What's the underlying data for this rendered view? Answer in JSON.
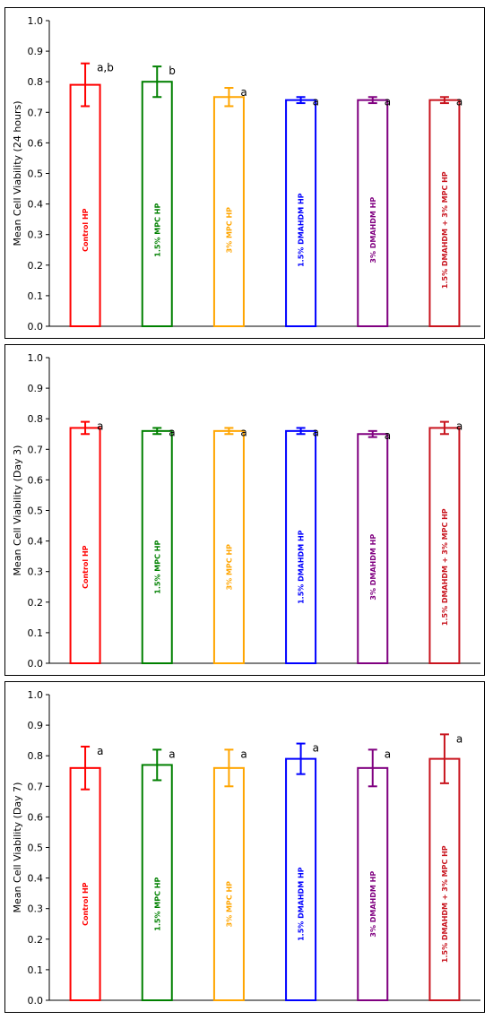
{
  "colors": [
    "#ff0000",
    "#008000",
    "#ffa500",
    "#0000ff",
    "#800080",
    "#c8141e"
  ],
  "chart_data": [
    {
      "type": "bar",
      "categories": [
        "Control HP",
        "1.5% MPC HP",
        "3% MPC HP",
        "1.5% DMAHDM HP",
        "3% DMAHDM HP",
        "1.5% DMAHDM + 3% MPC HP"
      ],
      "values": [
        0.79,
        0.8,
        0.75,
        0.74,
        0.74,
        0.74
      ],
      "errors": [
        0.07,
        0.05,
        0.03,
        0.01,
        0.01,
        0.01
      ],
      "significance": [
        "a,b",
        "b",
        "a",
        "a",
        "a",
        "a"
      ],
      "ylabel": "Mean Cell Viability (24 hours)",
      "ylim": [
        0,
        1.0
      ],
      "yticks": [
        "0.0",
        "0.1",
        "0.2",
        "0.3",
        "0.4",
        "0.5",
        "0.6",
        "0.7",
        "0.8",
        "0.9",
        "1.0"
      ]
    },
    {
      "type": "bar",
      "categories": [
        "Control HP",
        "1.5% MPC HP",
        "3% MPC HP",
        "1.5% DMAHDM HP",
        "3% DMAHDM HP",
        "1.5% DMAHDM + 3% MPC HP"
      ],
      "values": [
        0.77,
        0.76,
        0.76,
        0.76,
        0.75,
        0.77
      ],
      "errors": [
        0.02,
        0.01,
        0.01,
        0.01,
        0.01,
        0.02
      ],
      "significance": [
        "a",
        "a",
        "a",
        "a",
        "a",
        "a"
      ],
      "ylabel": "Mean Cell Viability (Day 3)",
      "ylim": [
        0,
        1.0
      ],
      "yticks": [
        "0.0",
        "0.1",
        "0.2",
        "0.3",
        "0.4",
        "0.5",
        "0.6",
        "0.7",
        "0.8",
        "0.9",
        "1.0"
      ]
    },
    {
      "type": "bar",
      "categories": [
        "Control HP",
        "1.5% MPC HP",
        "3% MPC HP",
        "1.5% DMAHDM HP",
        "3% DMAHDM HP",
        "1.5% DMAHDM + 3% MPC HP"
      ],
      "values": [
        0.76,
        0.77,
        0.76,
        0.79,
        0.76,
        0.79
      ],
      "errors": [
        0.07,
        0.05,
        0.06,
        0.05,
        0.06,
        0.08
      ],
      "significance": [
        "a",
        "a",
        "a",
        "a",
        "a",
        "a"
      ],
      "ylabel": "Mean Cell Viability (Day 7)",
      "ylim": [
        0,
        1.0
      ],
      "yticks": [
        "0.0",
        "0.1",
        "0.2",
        "0.3",
        "0.4",
        "0.5",
        "0.6",
        "0.7",
        "0.8",
        "0.9",
        "1.0"
      ]
    }
  ]
}
